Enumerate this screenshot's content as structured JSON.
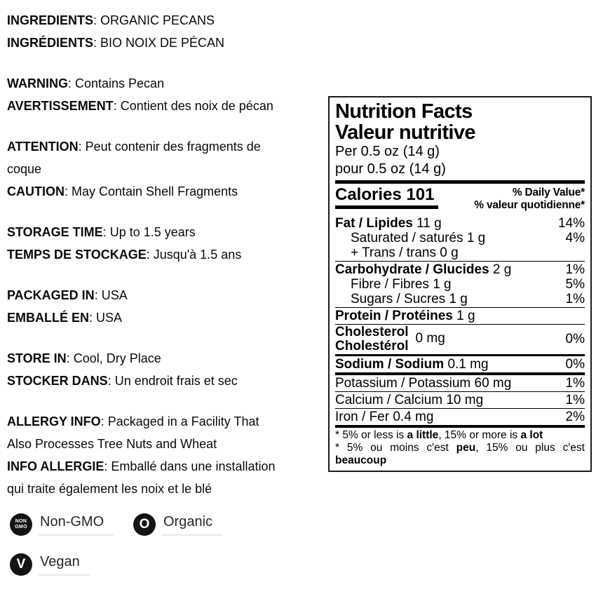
{
  "info": {
    "groups": [
      {
        "lines": [
          {
            "b": "INGREDIENTS",
            "t": ": ORGANIC PECANS"
          },
          {
            "b": "INGRÉDIENTS",
            "t": ": BIO NOIX DE PÉCAN"
          }
        ]
      },
      {
        "lines": [
          {
            "b": "WARNING",
            "t": ": Contains Pecan"
          },
          {
            "b": "AVERTISSEMENT",
            "t": ": Contient des noix de pécan"
          }
        ]
      },
      {
        "lines": [
          {
            "b": "ATTENTION",
            "t": ": Peut contenir des fragments de"
          },
          {
            "b": "",
            "t": "coque"
          },
          {
            "b": "CAUTION",
            "t": ": May Contain Shell Fragments"
          }
        ]
      },
      {
        "lines": [
          {
            "b": "STORAGE TIME",
            "t": ": Up to 1.5 years"
          },
          {
            "b": "TEMPS DE STOCKAGE",
            "t": ": Jusqu'à 1.5 ans"
          }
        ]
      },
      {
        "lines": [
          {
            "b": "PACKAGED IN",
            "t": ": USA"
          },
          {
            "b": "EMBALLÉ EN",
            "t": ": USA"
          }
        ]
      },
      {
        "lines": [
          {
            "b": "STORE IN",
            "t": ": Cool, Dry Place"
          },
          {
            "b": "STOCKER DANS",
            "t": ": Un endroit frais et sec"
          }
        ]
      },
      {
        "lines": [
          {
            "b": "ALLERGY INFO",
            "t": ": Packaged in a Facility That"
          },
          {
            "b": "",
            "t": "Also Processes Tree Nuts and Wheat"
          },
          {
            "b": "INFO ALLERGIE",
            "t": ": Emballé dans une installation"
          },
          {
            "b": "",
            "t": "qui traite également les noix et le blé"
          }
        ]
      }
    ]
  },
  "nutrition": {
    "title_en": "Nutrition Facts",
    "title_fr": "Valeur nutritive",
    "serving_en": "Per 0.5 oz (14 g)",
    "serving_fr": "pour 0.5 oz (14 g)",
    "calories": "Calories 101",
    "dv_en": "% Daily Value*",
    "dv_fr": "% valeur quotidienne*",
    "rows": [
      {
        "b": "Fat / Lipides",
        "t": " 11 g",
        "p": "14%"
      },
      {
        "b": "",
        "t": "Saturated / saturés 1 g",
        "p": "4%"
      },
      {
        "b": "",
        "t": "+ Trans / trans 0 g",
        "p": ""
      },
      {
        "b": "Carbohydrate / Glucides",
        "t": " 2 g",
        "p": "1%"
      },
      {
        "b": "",
        "t": "Fibre / Fibres 1 g",
        "p": "5%"
      },
      {
        "b": "",
        "t": "Sugars / Sucres 1 g",
        "p": "1%"
      },
      {
        "b": "Protein / Protéines",
        "t": " 1 g",
        "p": ""
      },
      {
        "b": "Sodium / Sodium",
        "t": " 0.1 mg",
        "p": "0%"
      },
      {
        "b": "",
        "t": "Potassium / Potassium 60 mg",
        "p": "1%"
      },
      {
        "b": "",
        "t": "Calcium / Calcium 10 mg",
        "p": "1%"
      },
      {
        "b": "",
        "t": "Iron / Fer 0.4 mg",
        "p": "2%"
      }
    ],
    "cholesterol": {
      "l1": "Cholesterol",
      "l2": "Cholestérol",
      "v": "0 mg",
      "p": "0%"
    },
    "footnote": {
      "en_pre": "* 5% or less is ",
      "en_b1": "a little",
      "en_mid": ", 15% or more is ",
      "en_b2": "a lot",
      "fr_pre": "* 5% ou moins c'est ",
      "fr_b1": "peu",
      "fr_mid": ", 15% ou plus c'est ",
      "fr_b2": "beaucoup"
    }
  },
  "badges": [
    {
      "icon": [
        "NON",
        "GMO"
      ],
      "label": "Non-GMO"
    },
    {
      "icon": [
        "O"
      ],
      "label": "Organic"
    },
    {
      "icon": [
        "V"
      ],
      "label": "Vegan"
    }
  ],
  "colors": {
    "text": "#0a0a0a",
    "badge_bg": "#141414",
    "label_underline": "#e9e9e9",
    "panel_border": "#1c1c1c"
  }
}
